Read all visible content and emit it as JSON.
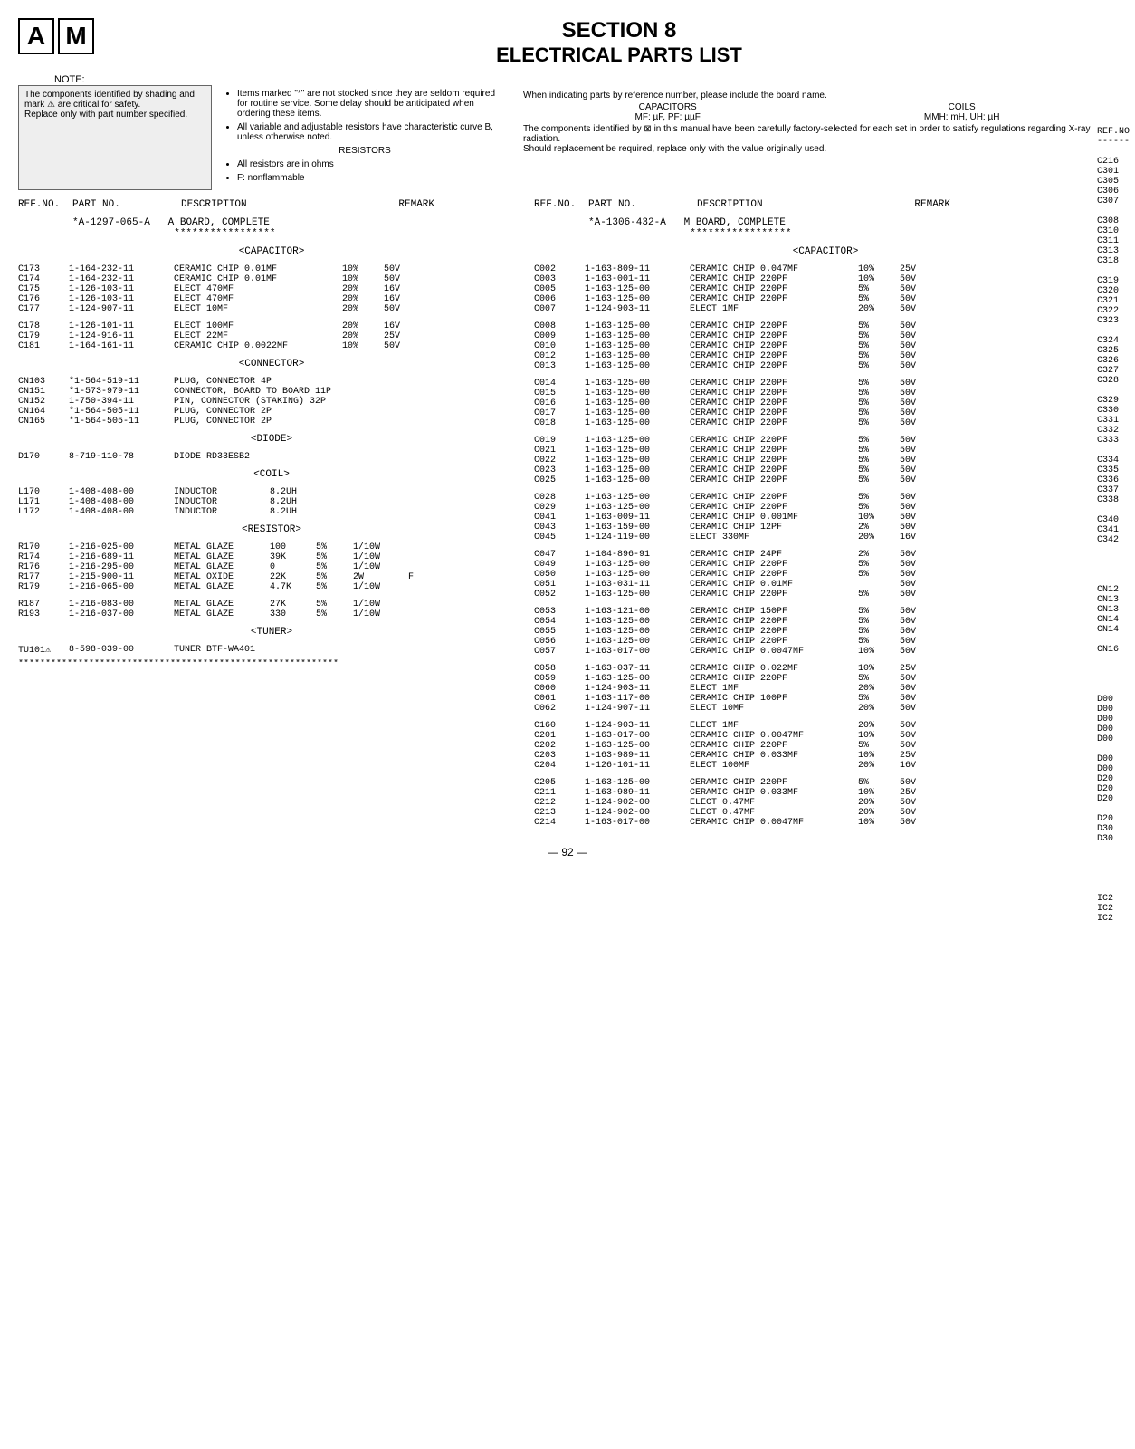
{
  "header": {
    "box_a": "A",
    "box_m": "M",
    "section": "SECTION 8",
    "title": "ELECTRICAL PARTS LIST",
    "note": "NOTE:"
  },
  "info": {
    "left": "The components identified by shading and mark ⚠ are critical for safety.\nReplace only with part number specified.",
    "mid_items": "Items marked \"*\" are not stocked since they are seldom required for routine service. Some delay should be anticipated when ordering these items.",
    "mid_var": "All variable and adjustable resistors have characteristic curve B, unless otherwise noted.",
    "mid_res_head": "RESISTORS",
    "mid_res1": "All resistors are in ohms",
    "mid_res2": "F: nonflammable",
    "right_top": "When indicating parts by reference number, please include the board name.",
    "right_cap": "CAPACITORS",
    "right_cap_sub": "MF: µF, PF: µµF",
    "right_coil": "COILS",
    "right_coil_sub": "MMH: mH, UH: µH",
    "right_warn": "The components identified by ⊠ in this manual have been carefully factory-selected for each set in order to satisfy regulations regarding X-ray radiation.\nShould replacement be required, replace only with the value originally used."
  },
  "col_head": {
    "refno": "REF.NO.",
    "partno": "PART NO.",
    "desc": "DESCRIPTION",
    "remark": "REMARK"
  },
  "board_a": {
    "part": "*A-1297-065-A",
    "desc": "A BOARD, COMPLETE",
    "stars": "*****************"
  },
  "board_m": {
    "part": "*A-1306-432-A",
    "desc": "M BOARD, COMPLETE",
    "stars": "*****************"
  },
  "sections": {
    "capacitor": "<CAPACITOR>",
    "connector": "<CONNECTOR>",
    "diode": "<DIODE>",
    "coil": "<COIL>",
    "resistor": "<RESISTOR>",
    "tuner": "<TUNER>"
  },
  "left_caps": [
    [
      "C173",
      "1-164-232-11",
      "CERAMIC CHIP 0.01MF",
      "10%",
      "50V"
    ],
    [
      "C174",
      "1-164-232-11",
      "CERAMIC CHIP 0.01MF",
      "10%",
      "50V"
    ],
    [
      "C175",
      "1-126-103-11",
      "ELECT        470MF",
      "20%",
      "16V"
    ],
    [
      "C176",
      "1-126-103-11",
      "ELECT        470MF",
      "20%",
      "16V"
    ],
    [
      "C177",
      "1-124-907-11",
      "ELECT         10MF",
      "20%",
      "50V"
    ],
    [
      "",
      "",
      "",
      "",
      ""
    ],
    [
      "C178",
      "1-126-101-11",
      "ELECT        100MF",
      "20%",
      "16V"
    ],
    [
      "C179",
      "1-124-916-11",
      "ELECT         22MF",
      "20%",
      "25V"
    ],
    [
      "C181",
      "1-164-161-11",
      "CERAMIC CHIP 0.0022MF",
      "10%",
      "50V"
    ]
  ],
  "left_conns": [
    [
      "CN103",
      "*1-564-519-11",
      "PLUG, CONNECTOR 4P"
    ],
    [
      "CN151",
      "*1-573-979-11",
      "CONNECTOR, BOARD TO BOARD 11P"
    ],
    [
      "CN152",
      "1-750-394-11",
      "PIN, CONNECTOR (STAKING) 32P"
    ],
    [
      "CN164",
      "*1-564-505-11",
      "PLUG, CONNECTOR 2P"
    ],
    [
      "CN165",
      "*1-564-505-11",
      "PLUG, CONNECTOR 2P"
    ]
  ],
  "left_diode": [
    "D170",
    "8-719-110-78",
    "DIODE RD33ESB2"
  ],
  "left_coils": [
    [
      "L170",
      "1-408-408-00",
      "INDUCTOR",
      "8.2UH"
    ],
    [
      "L171",
      "1-408-408-00",
      "INDUCTOR",
      "8.2UH"
    ],
    [
      "L172",
      "1-408-408-00",
      "INDUCTOR",
      "8.2UH"
    ]
  ],
  "left_res": [
    [
      "R170",
      "1-216-025-00",
      "METAL GLAZE",
      "100",
      "5%",
      "1/10W",
      ""
    ],
    [
      "R174",
      "1-216-689-11",
      "METAL GLAZE",
      "39K",
      "5%",
      "1/10W",
      ""
    ],
    [
      "R176",
      "1-216-295-00",
      "METAL GLAZE",
      "0",
      "5%",
      "1/10W",
      ""
    ],
    [
      "R177",
      "1-215-900-11",
      "METAL OXIDE",
      "22K",
      "5%",
      "2W",
      "F"
    ],
    [
      "R179",
      "1-216-065-00",
      "METAL GLAZE",
      "4.7K",
      "5%",
      "1/10W",
      ""
    ],
    [
      "",
      "",
      "",
      "",
      "",
      "",
      ""
    ],
    [
      "R187",
      "1-216-083-00",
      "METAL GLAZE",
      "27K",
      "5%",
      "1/10W",
      ""
    ],
    [
      "R193",
      "1-216-037-00",
      "METAL GLAZE",
      "330",
      "5%",
      "1/10W",
      ""
    ]
  ],
  "left_tuner": [
    "TU101⚠",
    "8-598-039-00",
    "TUNER BTF-WA401"
  ],
  "left_divider": "***********************************************************",
  "right_caps": [
    [
      "C002",
      "1-163-809-11",
      "CERAMIC CHIP 0.047MF",
      "10%",
      "25V"
    ],
    [
      "C003",
      "1-163-001-11",
      "CERAMIC CHIP 220PF",
      "10%",
      "50V"
    ],
    [
      "C005",
      "1-163-125-00",
      "CERAMIC CHIP 220PF",
      "5%",
      "50V"
    ],
    [
      "C006",
      "1-163-125-00",
      "CERAMIC CHIP 220PF",
      "5%",
      "50V"
    ],
    [
      "C007",
      "1-124-903-11",
      "ELECT          1MF",
      "20%",
      "50V"
    ],
    [
      "",
      "",
      "",
      "",
      ""
    ],
    [
      "C008",
      "1-163-125-00",
      "CERAMIC CHIP 220PF",
      "5%",
      "50V"
    ],
    [
      "C009",
      "1-163-125-00",
      "CERAMIC CHIP 220PF",
      "5%",
      "50V"
    ],
    [
      "C010",
      "1-163-125-00",
      "CERAMIC CHIP 220PF",
      "5%",
      "50V"
    ],
    [
      "C012",
      "1-163-125-00",
      "CERAMIC CHIP 220PF",
      "5%",
      "50V"
    ],
    [
      "C013",
      "1-163-125-00",
      "CERAMIC CHIP 220PF",
      "5%",
      "50V"
    ],
    [
      "",
      "",
      "",
      "",
      ""
    ],
    [
      "C014",
      "1-163-125-00",
      "CERAMIC CHIP 220PF",
      "5%",
      "50V"
    ],
    [
      "C015",
      "1-163-125-00",
      "CERAMIC CHIP 220PF",
      "5%",
      "50V"
    ],
    [
      "C016",
      "1-163-125-00",
      "CERAMIC CHIP 220PF",
      "5%",
      "50V"
    ],
    [
      "C017",
      "1-163-125-00",
      "CERAMIC CHIP 220PF",
      "5%",
      "50V"
    ],
    [
      "C018",
      "1-163-125-00",
      "CERAMIC CHIP 220PF",
      "5%",
      "50V"
    ],
    [
      "",
      "",
      "",
      "",
      ""
    ],
    [
      "C019",
      "1-163-125-00",
      "CERAMIC CHIP 220PF",
      "5%",
      "50V"
    ],
    [
      "C021",
      "1-163-125-00",
      "CERAMIC CHIP 220PF",
      "5%",
      "50V"
    ],
    [
      "C022",
      "1-163-125-00",
      "CERAMIC CHIP 220PF",
      "5%",
      "50V"
    ],
    [
      "C023",
      "1-163-125-00",
      "CERAMIC CHIP 220PF",
      "5%",
      "50V"
    ],
    [
      "C025",
      "1-163-125-00",
      "CERAMIC CHIP 220PF",
      "5%",
      "50V"
    ],
    [
      "",
      "",
      "",
      "",
      ""
    ],
    [
      "C028",
      "1-163-125-00",
      "CERAMIC CHIP 220PF",
      "5%",
      "50V"
    ],
    [
      "C029",
      "1-163-125-00",
      "CERAMIC CHIP 220PF",
      "5%",
      "50V"
    ],
    [
      "C041",
      "1-163-009-11",
      "CERAMIC CHIP 0.001MF",
      "10%",
      "50V"
    ],
    [
      "C043",
      "1-163-159-00",
      "CERAMIC CHIP 12PF",
      "2%",
      "50V"
    ],
    [
      "C045",
      "1-124-119-00",
      "ELECT        330MF",
      "20%",
      "16V"
    ],
    [
      "",
      "",
      "",
      "",
      ""
    ],
    [
      "C047",
      "1-104-896-91",
      "CERAMIC CHIP 24PF",
      "2%",
      "50V"
    ],
    [
      "C049",
      "1-163-125-00",
      "CERAMIC CHIP 220PF",
      "5%",
      "50V"
    ],
    [
      "C050",
      "1-163-125-00",
      "CERAMIC CHIP 220PF",
      "5%",
      "50V"
    ],
    [
      "C051",
      "1-163-031-11",
      "CERAMIC CHIP 0.01MF",
      "",
      "50V"
    ],
    [
      "C052",
      "1-163-125-00",
      "CERAMIC CHIP 220PF",
      "5%",
      "50V"
    ],
    [
      "",
      "",
      "",
      "",
      ""
    ],
    [
      "C053",
      "1-163-121-00",
      "CERAMIC CHIP 150PF",
      "5%",
      "50V"
    ],
    [
      "C054",
      "1-163-125-00",
      "CERAMIC CHIP 220PF",
      "5%",
      "50V"
    ],
    [
      "C055",
      "1-163-125-00",
      "CERAMIC CHIP 220PF",
      "5%",
      "50V"
    ],
    [
      "C056",
      "1-163-125-00",
      "CERAMIC CHIP 220PF",
      "5%",
      "50V"
    ],
    [
      "C057",
      "1-163-017-00",
      "CERAMIC CHIP 0.0047MF",
      "10%",
      "50V"
    ],
    [
      "",
      "",
      "",
      "",
      ""
    ],
    [
      "C058",
      "1-163-037-11",
      "CERAMIC CHIP 0.022MF",
      "10%",
      "25V"
    ],
    [
      "C059",
      "1-163-125-00",
      "CERAMIC CHIP 220PF",
      "5%",
      "50V"
    ],
    [
      "C060",
      "1-124-903-11",
      "ELECT          1MF",
      "20%",
      "50V"
    ],
    [
      "C061",
      "1-163-117-00",
      "CERAMIC CHIP 100PF",
      "5%",
      "50V"
    ],
    [
      "C062",
      "1-124-907-11",
      "ELECT         10MF",
      "20%",
      "50V"
    ],
    [
      "",
      "",
      "",
      "",
      ""
    ],
    [
      "C160",
      "1-124-903-11",
      "ELECT          1MF",
      "20%",
      "50V"
    ],
    [
      "C201",
      "1-163-017-00",
      "CERAMIC CHIP 0.0047MF",
      "10%",
      "50V"
    ],
    [
      "C202",
      "1-163-125-00",
      "CERAMIC CHIP 220PF",
      "5%",
      "50V"
    ],
    [
      "C203",
      "1-163-989-11",
      "CERAMIC CHIP 0.033MF",
      "10%",
      "25V"
    ],
    [
      "C204",
      "1-126-101-11",
      "ELECT        100MF",
      "20%",
      "16V"
    ],
    [
      "",
      "",
      "",
      "",
      ""
    ],
    [
      "C205",
      "1-163-125-00",
      "CERAMIC CHIP 220PF",
      "5%",
      "50V"
    ],
    [
      "C211",
      "1-163-989-11",
      "CERAMIC CHIP 0.033MF",
      "10%",
      "25V"
    ],
    [
      "C212",
      "1-124-902-00",
      "ELECT       0.47MF",
      "20%",
      "50V"
    ],
    [
      "C213",
      "1-124-902-00",
      "ELECT       0.47MF",
      "20%",
      "50V"
    ],
    [
      "C214",
      "1-163-017-00",
      "CERAMIC CHIP 0.0047MF",
      "10%",
      "50V"
    ]
  ],
  "side_refs": [
    "REF.NO",
    "------",
    "",
    "C216",
    "C301",
    "C305",
    "C306",
    "C307",
    "",
    "C308",
    "C310",
    "C311",
    "C313",
    "C318",
    "",
    "C319",
    "C320",
    "C321",
    "C322",
    "C323",
    "",
    "C324",
    "C325",
    "C326",
    "C327",
    "C328",
    "",
    "C329",
    "C330",
    "C331",
    "C332",
    "C333",
    "",
    "C334",
    "C335",
    "C336",
    "C337",
    "C338",
    "",
    "C340",
    "C341",
    "C342",
    "",
    "",
    "",
    "",
    "CN12",
    "CN13",
    "CN13",
    "CN14",
    "CN14",
    "",
    "CN16",
    "",
    "",
    "",
    "",
    "D00",
    "D00",
    "D00",
    "D00",
    "D00",
    "",
    "D00",
    "D00",
    "D20",
    "D20",
    "D20",
    "",
    "D20",
    "D30",
    "D30",
    "",
    "",
    "",
    "",
    "",
    "IC2",
    "IC2",
    "IC2"
  ],
  "page": "— 92 —"
}
